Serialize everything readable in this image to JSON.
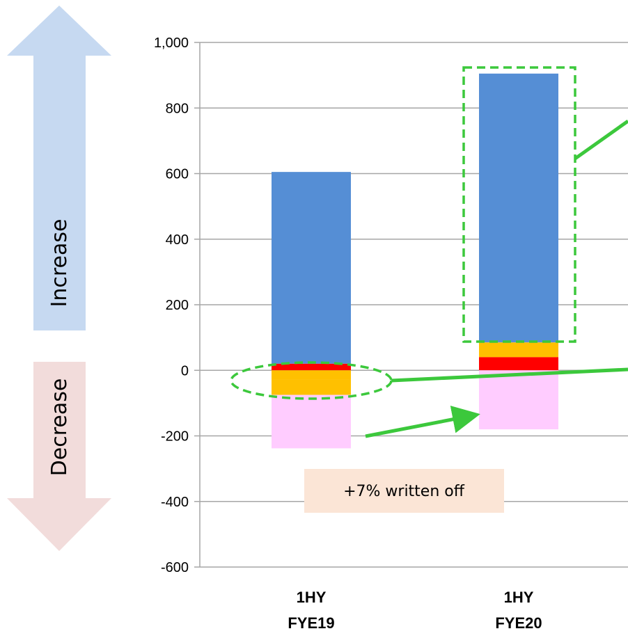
{
  "chart_data": {
    "type": "bar",
    "stacked": true,
    "categories": [
      {
        "line1": "1HY",
        "line2": "FYE19"
      },
      {
        "line1": "1HY",
        "line2": "FYE20"
      }
    ],
    "ylim": [
      -600,
      1000
    ],
    "yticks": [
      1000,
      800,
      600,
      400,
      200,
      0,
      -200,
      -400,
      -600
    ],
    "ytick_labels": [
      "1,000",
      "800",
      "600",
      "400",
      "200",
      "0",
      "-200",
      "-400",
      "-600"
    ],
    "grid": true,
    "segments": [
      {
        "cat": 0,
        "from": 20,
        "to": 605,
        "color": "#558ed5"
      },
      {
        "cat": 0,
        "from": 0,
        "to": 20,
        "color": "#ff0000"
      },
      {
        "cat": 0,
        "from": -28,
        "to": 0,
        "color": "#ffc000"
      },
      {
        "cat": 0,
        "from": -75,
        "to": -28,
        "color": "#ffc000"
      },
      {
        "cat": 0,
        "from": -238,
        "to": -75,
        "color": "#ffccff"
      },
      {
        "cat": 1,
        "from": 85,
        "to": 905,
        "color": "#558ed5"
      },
      {
        "cat": 1,
        "from": 40,
        "to": 85,
        "color": "#ffc000"
      },
      {
        "cat": 1,
        "from": 0,
        "to": 40,
        "color": "#ff0000"
      },
      {
        "cat": 1,
        "from": -180,
        "to": 0,
        "color": "#ffccff"
      }
    ],
    "annotation": "+7% written off"
  },
  "side_labels": {
    "increase": "Increase",
    "decrease": "Decrease",
    "increase_color": "#c6d9f1",
    "decrease_color": "#f2dcdb"
  },
  "colors": {
    "highlight": "#3cc83c",
    "note_bg": "#fbe5d6",
    "grid": "#a6a6a6"
  }
}
